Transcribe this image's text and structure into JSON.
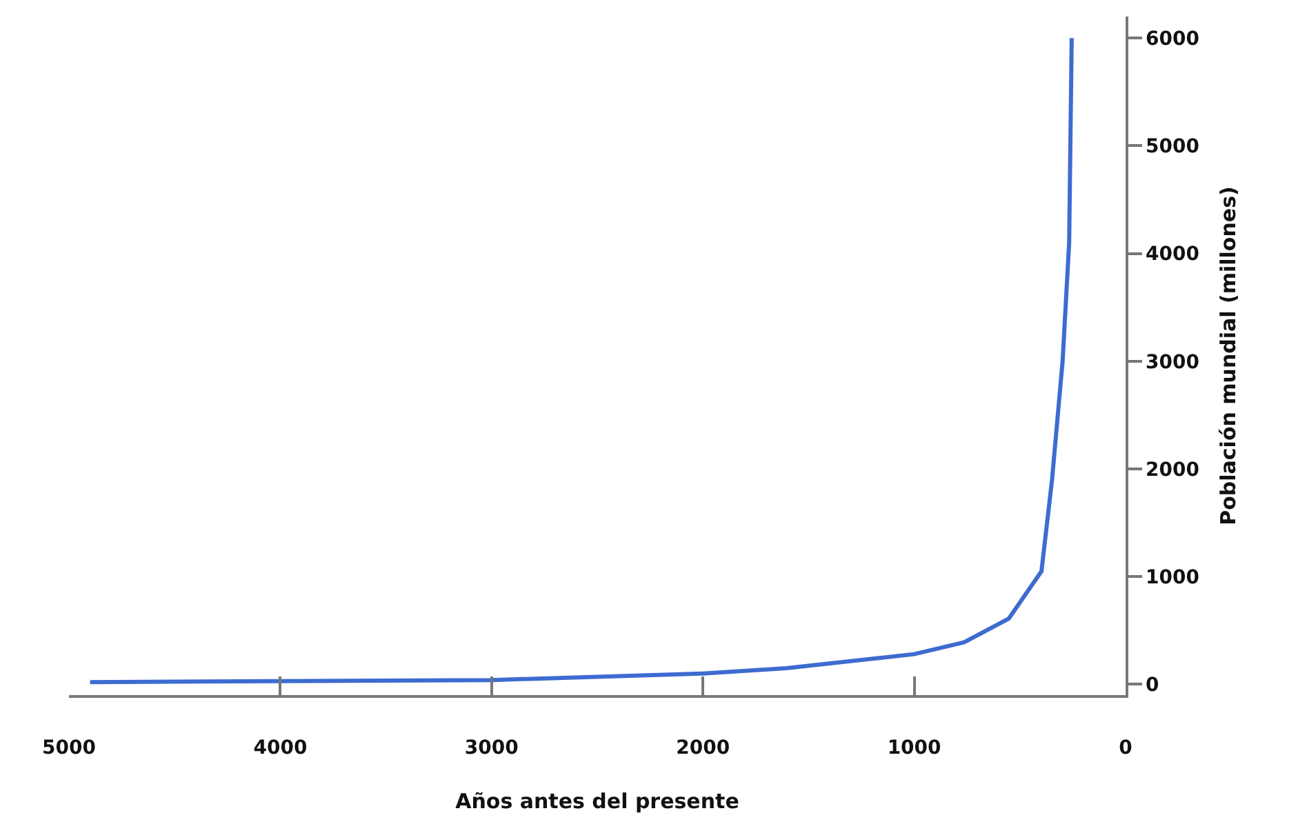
{
  "chart_data": {
    "type": "line",
    "xlabel": "Años antes del presente",
    "ylabel": "Población mundial (millones)",
    "x": [
      4900,
      4000,
      3000,
      2000,
      1605,
      1000,
      764,
      553,
      398,
      348,
      298,
      267,
      255
    ],
    "series": [
      {
        "color": "#3d6bd0",
        "values": [
          20,
          30,
          40,
          100,
          150,
          280,
          390,
          610,
          1050,
          1900,
          3000,
          4100,
          6000
        ]
      }
    ],
    "xlim": [
      5000,
      0
    ],
    "xticks": [
      5000,
      4000,
      3000,
      2000,
      1000,
      0
    ],
    "ylim": [
      -100,
      6200
    ],
    "yticks": [
      0,
      1000,
      2000,
      3000,
      4000,
      5000,
      6000
    ],
    "marker": "none",
    "line_style": "solid"
  }
}
